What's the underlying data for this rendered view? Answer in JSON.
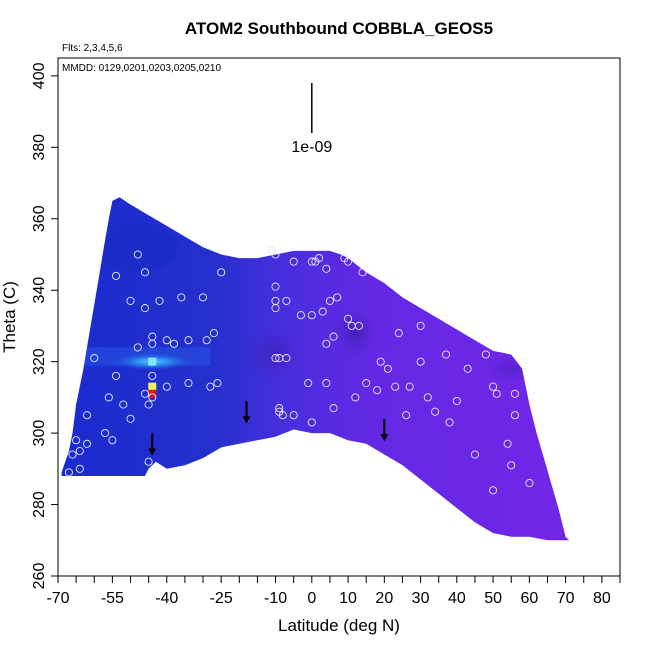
{
  "chart_data": {
    "type": "heatmap",
    "title": "ATOM2 Southbound COBBLA_GEOS5",
    "flights_label": "Flts: 2,3,4,5,6",
    "dates_label": "MMDD: 0129,0201,0203,0205,0210",
    "xlabel": "Latitude (deg N)",
    "ylabel": "Theta (C)",
    "xlim": [
      -70,
      85
    ],
    "ylim": [
      260,
      405
    ],
    "x_ticks": [
      -70,
      -55,
      -40,
      -25,
      -10,
      0,
      10,
      20,
      30,
      40,
      50,
      60,
      70,
      80
    ],
    "x_minor_ticks": [
      -65,
      -60,
      -50,
      -45,
      -35,
      -30,
      -20,
      -15,
      -5,
      5,
      15,
      25,
      35,
      45,
      55,
      65,
      75,
      85
    ],
    "y_ticks": [
      260,
      280,
      300,
      320,
      340,
      360,
      380,
      400
    ],
    "scale_label": "1e-09",
    "scale_bar": {
      "x": 0,
      "y_top": 398,
      "y_bottom": 384
    },
    "arrows": [
      {
        "lat": -44,
        "theta": 294
      },
      {
        "lat": -18,
        "theta": 303
      },
      {
        "lat": 20,
        "theta": 298
      }
    ],
    "domain_outline": [
      [
        -69,
        288
      ],
      [
        -69,
        289
      ],
      [
        -67,
        295
      ],
      [
        -66,
        300
      ],
      [
        -65,
        308
      ],
      [
        -63,
        318
      ],
      [
        -61,
        330
      ],
      [
        -59,
        342
      ],
      [
        -57,
        354
      ],
      [
        -56,
        360
      ],
      [
        -55,
        365
      ],
      [
        -53,
        366
      ],
      [
        -50,
        364
      ],
      [
        -45,
        361
      ],
      [
        -40,
        358
      ],
      [
        -35,
        355
      ],
      [
        -30,
        352
      ],
      [
        -25,
        350
      ],
      [
        -20,
        349
      ],
      [
        -15,
        349
      ],
      [
        -10,
        350
      ],
      [
        -5,
        351
      ],
      [
        0,
        351
      ],
      [
        5,
        351
      ],
      [
        8,
        350
      ],
      [
        10,
        349
      ],
      [
        15,
        345
      ],
      [
        20,
        342
      ],
      [
        25,
        338
      ],
      [
        30,
        335
      ],
      [
        35,
        332
      ],
      [
        40,
        329
      ],
      [
        45,
        326
      ],
      [
        50,
        323
      ],
      [
        55,
        322
      ],
      [
        58,
        318
      ],
      [
        60,
        308
      ],
      [
        62,
        300
      ],
      [
        64,
        293
      ],
      [
        66,
        286
      ],
      [
        68,
        279
      ],
      [
        70,
        271
      ],
      [
        71,
        270
      ],
      [
        65,
        270
      ],
      [
        60,
        271
      ],
      [
        55,
        271
      ],
      [
        50,
        272
      ],
      [
        45,
        275
      ],
      [
        40,
        279
      ],
      [
        35,
        283
      ],
      [
        30,
        287
      ],
      [
        25,
        291
      ],
      [
        20,
        294
      ],
      [
        15,
        297
      ],
      [
        10,
        298
      ],
      [
        5,
        300
      ],
      [
        0,
        300
      ],
      [
        -5,
        301
      ],
      [
        -10,
        299
      ],
      [
        -15,
        298
      ],
      [
        -20,
        297
      ],
      [
        -25,
        296
      ],
      [
        -30,
        293
      ],
      [
        -35,
        291
      ],
      [
        -40,
        290
      ],
      [
        -43,
        292
      ],
      [
        -45,
        290
      ],
      [
        -46,
        288
      ],
      [
        -69,
        288
      ]
    ],
    "anomalies": [
      {
        "lat": -44,
        "theta": 320,
        "level": "cyan"
      },
      {
        "lat": -44,
        "theta": 313,
        "level": "yellow"
      },
      {
        "lat": -44,
        "theta": 311,
        "level": "red"
      }
    ],
    "observations": [
      [
        -48,
        350
      ],
      [
        -46,
        345
      ],
      [
        -54,
        344
      ],
      [
        -50,
        337
      ],
      [
        -46,
        335
      ],
      [
        -42,
        337
      ],
      [
        -36,
        338
      ],
      [
        -30,
        338
      ],
      [
        -25,
        345
      ],
      [
        -44,
        327
      ],
      [
        -44,
        325
      ],
      [
        -40,
        326
      ],
      [
        -38,
        325
      ],
      [
        -34,
        326
      ],
      [
        -29,
        326
      ],
      [
        -27,
        328
      ],
      [
        -48,
        324
      ],
      [
        -54,
        316
      ],
      [
        -44,
        316
      ],
      [
        -40,
        313
      ],
      [
        -34,
        314
      ],
      [
        -26,
        314
      ],
      [
        -28,
        313
      ],
      [
        -46,
        311
      ],
      [
        -44,
        310
      ],
      [
        -45,
        308
      ],
      [
        -50,
        304
      ],
      [
        -52,
        308
      ],
      [
        -56,
        310
      ],
      [
        -60,
        321
      ],
      [
        -62,
        305
      ],
      [
        -65,
        298
      ],
      [
        -62,
        297
      ],
      [
        -64,
        295
      ],
      [
        -66,
        294
      ],
      [
        -64,
        290
      ],
      [
        -67,
        289
      ],
      [
        -57,
        300
      ],
      [
        -55,
        298
      ],
      [
        -45,
        292
      ],
      [
        -11,
        351
      ],
      [
        -10,
        350
      ],
      [
        -5,
        348
      ],
      [
        0,
        348
      ],
      [
        1,
        348
      ],
      [
        2,
        349
      ],
      [
        4,
        346
      ],
      [
        7,
        338
      ],
      [
        9,
        349
      ],
      [
        10,
        348
      ],
      [
        14,
        345
      ],
      [
        -10,
        341
      ],
      [
        -10,
        337
      ],
      [
        -10,
        335
      ],
      [
        -7,
        337
      ],
      [
        -3,
        333
      ],
      [
        0,
        333
      ],
      [
        3,
        334
      ],
      [
        5,
        337
      ],
      [
        10,
        332
      ],
      [
        11,
        330
      ],
      [
        13,
        330
      ],
      [
        6,
        327
      ],
      [
        4,
        325
      ],
      [
        -10,
        321
      ],
      [
        -9,
        321
      ],
      [
        -7,
        321
      ],
      [
        -9,
        307
      ],
      [
        -9,
        306
      ],
      [
        -8,
        305
      ],
      [
        -5,
        305
      ],
      [
        0,
        303
      ],
      [
        -1,
        314
      ],
      [
        4,
        314
      ],
      [
        6,
        307
      ],
      [
        12,
        310
      ],
      [
        15,
        314
      ],
      [
        18,
        312
      ],
      [
        19,
        320
      ],
      [
        21,
        318
      ],
      [
        23,
        313
      ],
      [
        26,
        305
      ],
      [
        27,
        313
      ],
      [
        30,
        320
      ],
      [
        32,
        310
      ],
      [
        34,
        306
      ],
      [
        37,
        322
      ],
      [
        38,
        303
      ],
      [
        40,
        309
      ],
      [
        43,
        318
      ],
      [
        45,
        294
      ],
      [
        48,
        322
      ],
      [
        50,
        313
      ],
      [
        51,
        311
      ],
      [
        56,
        311
      ],
      [
        56,
        305
      ],
      [
        54,
        297
      ],
      [
        55,
        291
      ],
      [
        50,
        284
      ],
      [
        60,
        286
      ],
      [
        24,
        328
      ],
      [
        30,
        330
      ]
    ]
  }
}
